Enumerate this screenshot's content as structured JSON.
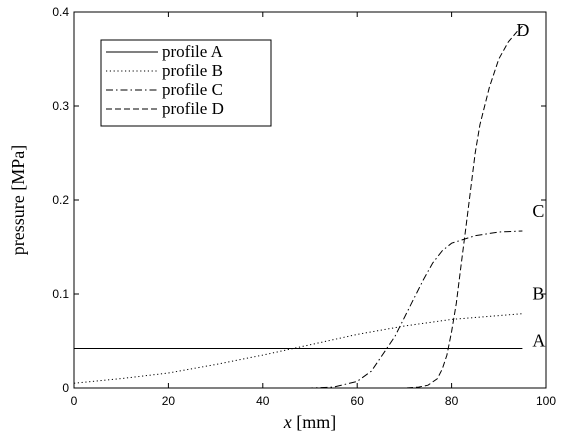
{
  "chart_data": {
    "type": "line",
    "xlabel_var": "x",
    "xlabel_unit": "[mm]",
    "ylabel": "pressure [MPa]",
    "xlim": [
      0,
      100
    ],
    "ylim": [
      0,
      0.4
    ],
    "xticks": [
      "0",
      "20",
      "40",
      "60",
      "80",
      "100"
    ],
    "yticks": [
      "0",
      "0.1",
      "0.2",
      "0.3",
      "0.4"
    ],
    "grid": false,
    "legend_position": "top-left",
    "series": [
      {
        "name": "profile A",
        "label": "A",
        "dash": "solid",
        "x": [
          0,
          95
        ],
        "y": [
          0.042,
          0.042
        ]
      },
      {
        "name": "profile B",
        "label": "B",
        "dash": "dotted",
        "x": [
          0,
          10,
          20,
          30,
          40,
          50,
          60,
          70,
          80,
          90,
          95
        ],
        "y": [
          0.005,
          0.01,
          0.016,
          0.025,
          0.035,
          0.046,
          0.057,
          0.066,
          0.073,
          0.077,
          0.079
        ]
      },
      {
        "name": "profile C",
        "label": "C",
        "dash": "dashdot",
        "x": [
          0,
          40,
          50,
          55,
          60,
          63,
          66,
          68,
          70,
          72,
          74,
          76,
          78,
          80,
          85,
          90,
          95
        ],
        "y": [
          0,
          0,
          0,
          0.001,
          0.007,
          0.018,
          0.04,
          0.055,
          0.075,
          0.095,
          0.115,
          0.133,
          0.146,
          0.154,
          0.162,
          0.166,
          0.167
        ]
      },
      {
        "name": "profile D",
        "label": "D",
        "dash": "dashed",
        "x": [
          0,
          60,
          70,
          73,
          75,
          77,
          78,
          79,
          80,
          81,
          82,
          83,
          84,
          85,
          86,
          88,
          90,
          92,
          94,
          95
        ],
        "y": [
          0,
          0,
          0,
          0.001,
          0.003,
          0.01,
          0.02,
          0.035,
          0.06,
          0.09,
          0.13,
          0.17,
          0.21,
          0.25,
          0.28,
          0.32,
          0.35,
          0.368,
          0.38,
          0.385
        ]
      }
    ]
  }
}
